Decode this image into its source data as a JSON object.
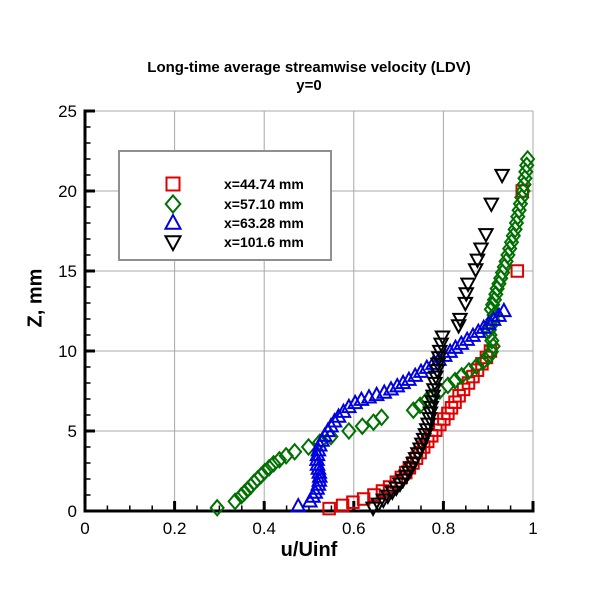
{
  "chart_data": {
    "type": "scatter",
    "title": "Long-time average streamwise velocity (LDV)",
    "subtitle": "y=0",
    "xlabel": "u/Uinf",
    "ylabel": "Z, mm",
    "xlim": [
      0,
      1
    ],
    "ylim": [
      0,
      25
    ],
    "x_tick_values": [
      0,
      0.2,
      0.4,
      0.6,
      0.8,
      1
    ],
    "x_tick_labels": [
      "0",
      "0.2",
      "0.4",
      "0.6",
      "0.8",
      "1"
    ],
    "y_tick_values": [
      0,
      5,
      10,
      15,
      20,
      25
    ],
    "y_tick_labels": [
      "0",
      "5",
      "10",
      "15",
      "20",
      "25"
    ],
    "x_minor_step": 0.05,
    "y_minor_step": 1,
    "grid": true,
    "grid_color": "#a8a8a8",
    "legend_position": "upper-left-inside",
    "series": [
      {
        "name": "x=44.74 mm",
        "marker": "square",
        "color": "#e00000",
        "points": [
          [
            0.545,
            0.15
          ],
          [
            0.575,
            0.35
          ],
          [
            0.598,
            0.55
          ],
          [
            0.622,
            0.75
          ],
          [
            0.645,
            1.0
          ],
          [
            0.664,
            1.25
          ],
          [
            0.68,
            1.5
          ],
          [
            0.695,
            1.8
          ],
          [
            0.706,
            2.1
          ],
          [
            0.716,
            2.4
          ],
          [
            0.724,
            2.7
          ],
          [
            0.732,
            3.0
          ],
          [
            0.74,
            3.3
          ],
          [
            0.748,
            3.65
          ],
          [
            0.756,
            4.0
          ],
          [
            0.765,
            4.35
          ],
          [
            0.774,
            4.7
          ],
          [
            0.783,
            5.05
          ],
          [
            0.792,
            5.4
          ],
          [
            0.801,
            5.75
          ],
          [
            0.81,
            6.1
          ],
          [
            0.818,
            6.45
          ],
          [
            0.826,
            6.8
          ],
          [
            0.835,
            7.2
          ],
          [
            0.845,
            7.6
          ],
          [
            0.856,
            8.0
          ],
          [
            0.866,
            8.4
          ],
          [
            0.876,
            8.8
          ],
          [
            0.886,
            9.2
          ],
          [
            0.896,
            9.6
          ],
          [
            0.905,
            10.0
          ],
          [
            0.965,
            15.0
          ],
          [
            0.976,
            20.0
          ]
        ]
      },
      {
        "name": "x=57.10 mm",
        "marker": "diamond",
        "color": "#007000",
        "points": [
          [
            0.295,
            0.2
          ],
          [
            0.335,
            0.6
          ],
          [
            0.349,
            0.95
          ],
          [
            0.356,
            1.15
          ],
          [
            0.363,
            1.35
          ],
          [
            0.37,
            1.55
          ],
          [
            0.377,
            1.78
          ],
          [
            0.385,
            2.0
          ],
          [
            0.393,
            2.22
          ],
          [
            0.401,
            2.45
          ],
          [
            0.411,
            2.7
          ],
          [
            0.421,
            2.95
          ],
          [
            0.434,
            3.2
          ],
          [
            0.449,
            3.45
          ],
          [
            0.468,
            3.7
          ],
          [
            0.499,
            4.0
          ],
          [
            0.524,
            4.3
          ],
          [
            0.549,
            4.65
          ],
          [
            0.589,
            5.0
          ],
          [
            0.619,
            5.3
          ],
          [
            0.644,
            5.55
          ],
          [
            0.662,
            5.85
          ],
          [
            0.733,
            6.3
          ],
          [
            0.748,
            6.6
          ],
          [
            0.762,
            6.9
          ],
          [
            0.777,
            7.2
          ],
          [
            0.792,
            7.5
          ],
          [
            0.81,
            7.85
          ],
          [
            0.826,
            8.15
          ],
          [
            0.841,
            8.45
          ],
          [
            0.857,
            8.75
          ],
          [
            0.874,
            9.05
          ],
          [
            0.889,
            9.35
          ],
          [
            0.901,
            9.65
          ],
          [
            0.907,
            9.95
          ],
          [
            0.911,
            10.3
          ],
          [
            0.908,
            10.65
          ],
          [
            0.904,
            11.0
          ],
          [
            0.902,
            11.3
          ],
          [
            0.906,
            11.6
          ],
          [
            0.91,
            11.95
          ],
          [
            0.913,
            12.25
          ],
          [
            0.907,
            12.6
          ],
          [
            0.91,
            12.9
          ],
          [
            0.914,
            13.2
          ],
          [
            0.917,
            13.55
          ],
          [
            0.92,
            13.9
          ],
          [
            0.924,
            14.2
          ],
          [
            0.928,
            14.55
          ],
          [
            0.932,
            14.9
          ],
          [
            0.936,
            15.25
          ],
          [
            0.94,
            15.6
          ],
          [
            0.944,
            16.0
          ],
          [
            0.948,
            16.4
          ],
          [
            0.952,
            16.8
          ],
          [
            0.956,
            17.2
          ],
          [
            0.96,
            17.6
          ],
          [
            0.963,
            18.0
          ],
          [
            0.966,
            18.4
          ],
          [
            0.969,
            18.8
          ],
          [
            0.972,
            19.2
          ],
          [
            0.975,
            19.6
          ],
          [
            0.978,
            20.0
          ],
          [
            0.98,
            20.4
          ],
          [
            0.982,
            20.8
          ],
          [
            0.984,
            21.2
          ],
          [
            0.986,
            21.6
          ],
          [
            0.988,
            22.0
          ]
        ]
      },
      {
        "name": "x=63.28 mm",
        "marker": "triangle-up",
        "color": "#0000e0",
        "points": [
          [
            0.476,
            0.3
          ],
          [
            0.502,
            0.6
          ],
          [
            0.509,
            0.9
          ],
          [
            0.514,
            1.15
          ],
          [
            0.518,
            1.4
          ],
          [
            0.521,
            1.65
          ],
          [
            0.523,
            1.9
          ],
          [
            0.524,
            2.15
          ],
          [
            0.523,
            2.4
          ],
          [
            0.521,
            2.65
          ],
          [
            0.519,
            2.9
          ],
          [
            0.518,
            3.2
          ],
          [
            0.519,
            3.5
          ],
          [
            0.521,
            3.8
          ],
          [
            0.524,
            4.1
          ],
          [
            0.529,
            4.4
          ],
          [
            0.535,
            4.7
          ],
          [
            0.542,
            5.0
          ],
          [
            0.549,
            5.3
          ],
          [
            0.557,
            5.6
          ],
          [
            0.566,
            5.9
          ],
          [
            0.577,
            6.2
          ],
          [
            0.589,
            6.5
          ],
          [
            0.603,
            6.75
          ],
          [
            0.617,
            6.95
          ],
          [
            0.634,
            7.1
          ],
          [
            0.651,
            7.25
          ],
          [
            0.668,
            7.4
          ],
          [
            0.683,
            7.6
          ],
          [
            0.697,
            7.8
          ],
          [
            0.71,
            8.0
          ],
          [
            0.723,
            8.2
          ],
          [
            0.737,
            8.45
          ],
          [
            0.75,
            8.7
          ],
          [
            0.763,
            8.95
          ],
          [
            0.777,
            9.2
          ],
          [
            0.79,
            9.45
          ],
          [
            0.803,
            9.7
          ],
          [
            0.815,
            9.95
          ],
          [
            0.827,
            10.2
          ],
          [
            0.84,
            10.45
          ],
          [
            0.853,
            10.7
          ],
          [
            0.866,
            10.95
          ],
          [
            0.878,
            11.2
          ],
          [
            0.89,
            11.45
          ],
          [
            0.901,
            11.7
          ],
          [
            0.912,
            11.95
          ],
          [
            0.924,
            12.2
          ],
          [
            0.935,
            12.5
          ]
        ]
      },
      {
        "name": "x=101.6 mm",
        "marker": "triangle-down",
        "color": "#000000",
        "points": [
          [
            0.643,
            0.2
          ],
          [
            0.655,
            0.45
          ],
          [
            0.666,
            0.7
          ],
          [
            0.676,
            0.95
          ],
          [
            0.686,
            1.2
          ],
          [
            0.695,
            1.45
          ],
          [
            0.703,
            1.7
          ],
          [
            0.71,
            1.95
          ],
          [
            0.717,
            2.2
          ],
          [
            0.723,
            2.45
          ],
          [
            0.728,
            2.7
          ],
          [
            0.733,
            3.0
          ],
          [
            0.738,
            3.3
          ],
          [
            0.743,
            3.6
          ],
          [
            0.748,
            3.9
          ],
          [
            0.752,
            4.2
          ],
          [
            0.756,
            4.5
          ],
          [
            0.76,
            4.8
          ],
          [
            0.763,
            5.1
          ],
          [
            0.766,
            5.45
          ],
          [
            0.769,
            5.8
          ],
          [
            0.771,
            6.15
          ],
          [
            0.773,
            6.5
          ],
          [
            0.775,
            6.85
          ],
          [
            0.777,
            7.2
          ],
          [
            0.779,
            7.6
          ],
          [
            0.781,
            8.0
          ],
          [
            0.783,
            8.4
          ],
          [
            0.786,
            8.8
          ],
          [
            0.788,
            9.2
          ],
          [
            0.79,
            9.6
          ],
          [
            0.792,
            10.0
          ],
          [
            0.795,
            10.45
          ],
          [
            0.798,
            10.9
          ],
          [
            0.834,
            11.6
          ],
          [
            0.837,
            12.0
          ],
          [
            0.849,
            13.0
          ],
          [
            0.851,
            13.6
          ],
          [
            0.855,
            14.2
          ],
          [
            0.872,
            15.1
          ],
          [
            0.876,
            15.7
          ],
          [
            0.884,
            16.4
          ],
          [
            0.895,
            17.3
          ],
          [
            0.907,
            19.2
          ],
          [
            0.931,
            21.0
          ]
        ]
      }
    ]
  }
}
